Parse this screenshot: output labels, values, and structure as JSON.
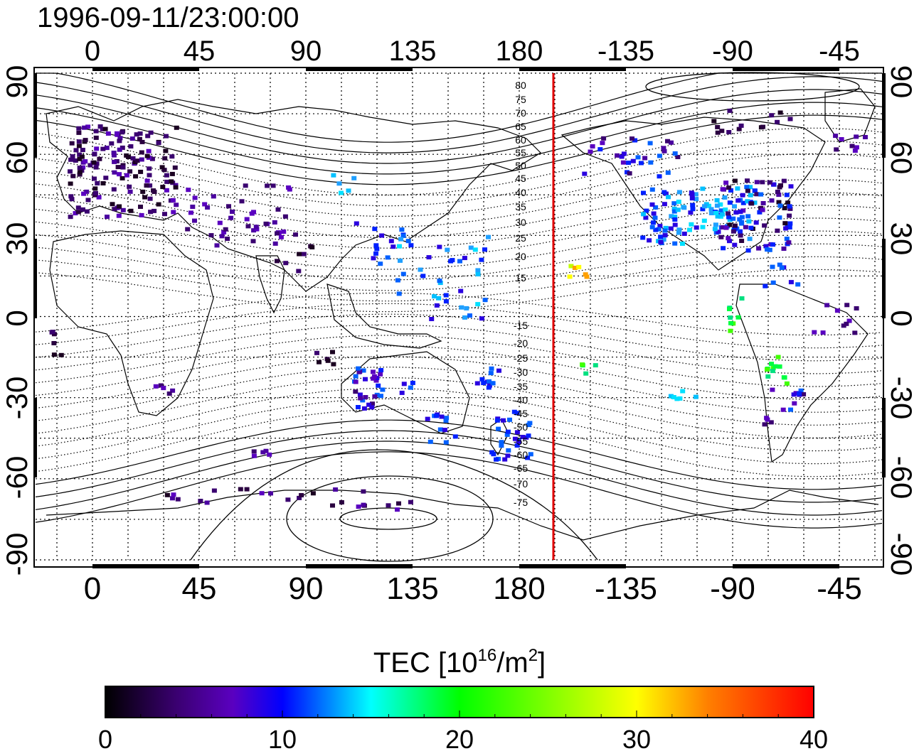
{
  "timestamp": "1996-09-11/23:00:00",
  "map": {
    "lon_ticks_top": [
      "0",
      "45",
      "90",
      "135",
      "180",
      "-135",
      "-90",
      "-45"
    ],
    "lon_ticks_bottom": [
      "0",
      "45",
      "90",
      "135",
      "180",
      "-135",
      "-90",
      "-45"
    ],
    "lat_ticks_left": [
      "90",
      "60",
      "30",
      "0",
      "-30",
      "-60",
      "-90"
    ],
    "lat_ticks_right": [
      "90",
      "60",
      "30",
      "0",
      "-30",
      "-60",
      "-90"
    ],
    "contour_labels": [
      "80",
      "75",
      "70",
      "65",
      "60",
      "55",
      "50",
      "45",
      "40",
      "35",
      "30",
      "25",
      "20",
      "15",
      "-15",
      "-20",
      "-25",
      "-30",
      "-35",
      "-40",
      "-45",
      "-50",
      "-55",
      "-60",
      "-65",
      "-70",
      "-75"
    ],
    "terminator_color": "#e00000",
    "colorbar_title_prefix": "TEC  [10",
    "colorbar_title_exp": "16",
    "colorbar_title_mid": "/m",
    "colorbar_title_exp2": "2",
    "colorbar_title_suffix": "]",
    "colorbar_ticks": [
      "0",
      "10",
      "20",
      "30",
      "40"
    ],
    "colormap": [
      "#000000",
      "#3a0070",
      "#5a00c0",
      "#0000ff",
      "#00ffff",
      "#00ff00",
      "#ffff00",
      "#ff8000",
      "#ff0000"
    ]
  }
}
